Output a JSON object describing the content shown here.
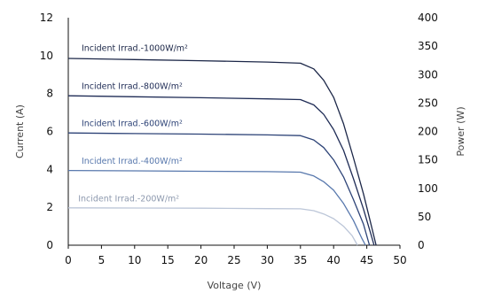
{
  "chart_data": {
    "type": "line",
    "title": "",
    "xlabel": "Voltage (V)",
    "ylabel": "Current (A)",
    "y2label": "Power (W)",
    "xlim": [
      0,
      50
    ],
    "ylim": [
      0,
      12
    ],
    "y2lim": [
      0,
      400
    ],
    "x_ticks": [
      0,
      5,
      10,
      15,
      20,
      25,
      30,
      35,
      40,
      45,
      50
    ],
    "y_ticks": [
      0,
      2,
      4,
      6,
      8,
      10,
      12
    ],
    "y2_ticks": [
      0,
      50,
      100,
      150,
      200,
      250,
      300,
      350,
      400
    ],
    "grid": false,
    "series": [
      {
        "name": "Incident Irrad.-1000W/m²",
        "color": "#1c2748",
        "points": [
          [
            0,
            9.85
          ],
          [
            10,
            9.79
          ],
          [
            20,
            9.73
          ],
          [
            30,
            9.66
          ],
          [
            35,
            9.6
          ],
          [
            37,
            9.3
          ],
          [
            38.5,
            8.7
          ],
          [
            40,
            7.8
          ],
          [
            41.5,
            6.4
          ],
          [
            43,
            4.6
          ],
          [
            44.5,
            2.7
          ],
          [
            45.5,
            1.3
          ],
          [
            46.4,
            0
          ]
        ]
      },
      {
        "name": "Incident Irrad.-800W/m²",
        "color": "#1f2c56",
        "points": [
          [
            0,
            7.88
          ],
          [
            10,
            7.83
          ],
          [
            20,
            7.78
          ],
          [
            30,
            7.72
          ],
          [
            35,
            7.68
          ],
          [
            37,
            7.4
          ],
          [
            38.5,
            6.9
          ],
          [
            40,
            6.1
          ],
          [
            41.5,
            5.0
          ],
          [
            43,
            3.5
          ],
          [
            44.5,
            1.9
          ],
          [
            45.6,
            0.6
          ],
          [
            46.1,
            0
          ]
        ]
      },
      {
        "name": "Incident Irrad.-600W/m²",
        "color": "#2d4377",
        "points": [
          [
            0,
            5.92
          ],
          [
            10,
            5.89
          ],
          [
            20,
            5.86
          ],
          [
            30,
            5.82
          ],
          [
            35,
            5.78
          ],
          [
            37,
            5.55
          ],
          [
            38.5,
            5.15
          ],
          [
            40,
            4.5
          ],
          [
            41.5,
            3.6
          ],
          [
            43,
            2.4
          ],
          [
            44.5,
            1.1
          ],
          [
            45.4,
            0
          ]
        ]
      },
      {
        "name": "Incident Irrad.-400W/m²",
        "color": "#5878ad",
        "points": [
          [
            0,
            3.94
          ],
          [
            10,
            3.92
          ],
          [
            20,
            3.9
          ],
          [
            30,
            3.88
          ],
          [
            35,
            3.85
          ],
          [
            37,
            3.65
          ],
          [
            38.5,
            3.35
          ],
          [
            40,
            2.9
          ],
          [
            41.5,
            2.2
          ],
          [
            43,
            1.3
          ],
          [
            44.2,
            0.4
          ],
          [
            44.8,
            0
          ]
        ]
      },
      {
        "name": "Incident Irrad.-200W/m²",
        "color": "#bcc6d8",
        "points": [
          [
            0,
            1.97
          ],
          [
            10,
            1.96
          ],
          [
            20,
            1.95
          ],
          [
            30,
            1.93
          ],
          [
            35,
            1.92
          ],
          [
            37,
            1.82
          ],
          [
            38.5,
            1.65
          ],
          [
            40,
            1.4
          ],
          [
            41.5,
            1.0
          ],
          [
            42.8,
            0.5
          ],
          [
            43.6,
            0
          ]
        ]
      }
    ],
    "annotations": [
      {
        "text": "Incident Irrad.-1000W/m²",
        "series": 0,
        "x": 2,
        "y": 10.25
      },
      {
        "text": "Incident Irrad.-800W/m²",
        "series": 1,
        "x": 2,
        "y": 8.25
      },
      {
        "text": "Incident Irrad.-600W/m²",
        "series": 2,
        "x": 2,
        "y": 6.28
      },
      {
        "text": "Incident Irrad.-400W/m²",
        "series": 3,
        "x": 2,
        "y": 4.3
      },
      {
        "text": "Incident Irrad.-200W/m²",
        "series": 4,
        "x": 1.5,
        "y": 2.32
      }
    ]
  }
}
